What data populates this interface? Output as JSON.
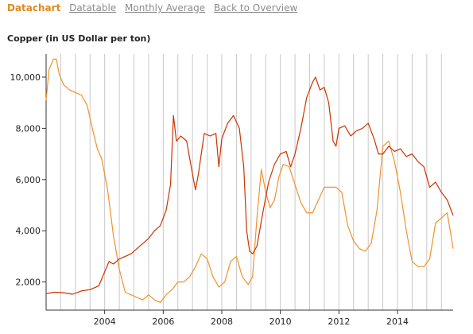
{
  "nav": {
    "tabs": [
      {
        "label": "Datachart",
        "active": true
      },
      {
        "label": "Datatable",
        "active": false
      },
      {
        "label": "Monthly Average",
        "active": false
      },
      {
        "label": "Back to Overview",
        "active": false
      }
    ]
  },
  "colors": {
    "series_primary": "#cc3300",
    "series_secondary": "#f0922b",
    "active_tab": "#e08a1e",
    "grid": "#c8c8c8"
  },
  "chart_data": {
    "type": "line",
    "title": "Copper (in US Dollar per ton)",
    "xlabel": "",
    "ylabel": "",
    "xlim": [
      2002.0,
      2015.9
    ],
    "ylim": [
      900,
      10900
    ],
    "x_ticks": [
      "2004",
      "2006",
      "2008",
      "2010",
      "2012",
      "2014"
    ],
    "y_ticks": [
      "2,000",
      "4,000",
      "6,000",
      "8,000",
      "10,000"
    ],
    "grid": "vertical lines at every half year",
    "series": [
      {
        "color": "#cc3300",
        "x": [
          2002.0,
          2002.3,
          2002.6,
          2002.9,
          2003.2,
          2003.5,
          2003.8,
          2004.0,
          2004.15,
          2004.3,
          2004.5,
          2004.7,
          2004.9,
          2005.1,
          2005.3,
          2005.5,
          2005.7,
          2005.9,
          2006.1,
          2006.25,
          2006.35,
          2006.45,
          2006.6,
          2006.8,
          2007.0,
          2007.1,
          2007.2,
          2007.4,
          2007.6,
          2007.8,
          2007.9,
          2008.0,
          2008.2,
          2008.4,
          2008.6,
          2008.75,
          2008.85,
          2008.95,
          2009.05,
          2009.2,
          2009.4,
          2009.6,
          2009.8,
          2010.0,
          2010.2,
          2010.35,
          2010.5,
          2010.7,
          2010.9,
          2011.1,
          2011.2,
          2011.35,
          2011.5,
          2011.65,
          2011.8,
          2011.9,
          2012.0,
          2012.2,
          2012.4,
          2012.6,
          2012.8,
          2013.0,
          2013.2,
          2013.35,
          2013.5,
          2013.7,
          2013.9,
          2014.1,
          2014.3,
          2014.5,
          2014.7,
          2014.9,
          2015.1,
          2015.3,
          2015.5,
          2015.7,
          2015.9
        ],
        "y": [
          1550,
          1600,
          1580,
          1520,
          1650,
          1700,
          1850,
          2400,
          2800,
          2700,
          2900,
          3000,
          3100,
          3300,
          3500,
          3700,
          4000,
          4200,
          4800,
          5800,
          8500,
          7500,
          7700,
          7500,
          6200,
          5600,
          6200,
          7800,
          7700,
          7800,
          6500,
          7600,
          8200,
          8500,
          8000,
          6500,
          4000,
          3200,
          3100,
          3400,
          4700,
          5900,
          6600,
          7000,
          7100,
          6500,
          7000,
          8000,
          9200,
          9800,
          10000,
          9500,
          9600,
          9000,
          7500,
          7300,
          8000,
          8100,
          7700,
          7900,
          8000,
          8200,
          7600,
          7000,
          7000,
          7300,
          7100,
          7200,
          6900,
          7000,
          6700,
          6500,
          5700,
          5900,
          5500,
          5200,
          4600
        ]
      },
      {
        "color": "#f0922b",
        "x": [
          2002.0,
          2002.1,
          2002.25,
          2002.35,
          2002.45,
          2002.6,
          2002.8,
          2003.0,
          2003.2,
          2003.4,
          2003.6,
          2003.75,
          2003.9,
          2004.1,
          2004.3,
          2004.5,
          2004.7,
          2004.9,
          2005.1,
          2005.3,
          2005.5,
          2005.7,
          2005.9,
          2006.1,
          2006.3,
          2006.5,
          2006.7,
          2006.9,
          2007.1,
          2007.3,
          2007.5,
          2007.7,
          2007.9,
          2008.1,
          2008.3,
          2008.5,
          2008.7,
          2008.9,
          2009.05,
          2009.2,
          2009.35,
          2009.5,
          2009.65,
          2009.8,
          2009.95,
          2010.1,
          2010.3,
          2010.5,
          2010.7,
          2010.9,
          2011.1,
          2011.3,
          2011.5,
          2011.7,
          2011.9,
          2012.1,
          2012.3,
          2012.5,
          2012.7,
          2012.9,
          2013.1,
          2013.3,
          2013.5,
          2013.7,
          2013.9,
          2014.1,
          2014.3,
          2014.5,
          2014.7,
          2014.9,
          2015.1,
          2015.3,
          2015.5,
          2015.7,
          2015.9
        ],
        "y": [
          9100,
          10300,
          10700,
          10700,
          10100,
          9700,
          9500,
          9400,
          9300,
          8900,
          7900,
          7200,
          6800,
          5600,
          3800,
          2500,
          1600,
          1500,
          1400,
          1300,
          1500,
          1300,
          1200,
          1500,
          1700,
          2000,
          2000,
          2200,
          2600,
          3100,
          2900,
          2200,
          1800,
          2000,
          2800,
          3000,
          2200,
          1900,
          2200,
          4500,
          6400,
          5500,
          4900,
          5200,
          6100,
          6600,
          6500,
          5800,
          5100,
          4700,
          4700,
          5200,
          5700,
          5700,
          5700,
          5500,
          4200,
          3600,
          3300,
          3200,
          3500,
          4800,
          7300,
          7500,
          6700,
          5500,
          4000,
          2800,
          2600,
          2600,
          2900,
          4300,
          4500,
          4700,
          3300
        ]
      }
    ]
  }
}
